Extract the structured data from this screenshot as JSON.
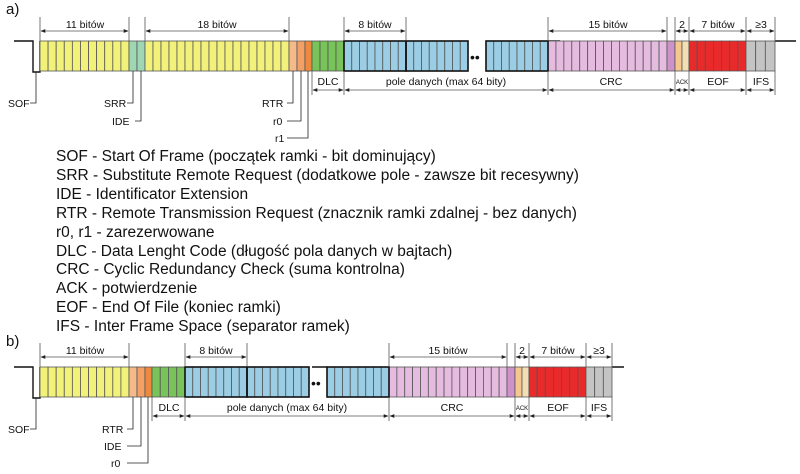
{
  "panels": {
    "a": {
      "label": "a)",
      "top_labels": [
        "11 bitów",
        "18 bitów",
        "8 bitów",
        "15 bitów",
        "2",
        "7 bitów",
        "≥3"
      ],
      "field_labels": [
        "DLC",
        "pole danych (max 64 bity)",
        "CRC",
        "ACK",
        "EOF",
        "IFS"
      ],
      "pointer_labels": [
        "SOF",
        "SRR",
        "IDE",
        "RTR",
        "r0",
        "r1"
      ],
      "dots": "••"
    },
    "b": {
      "label": "b)",
      "top_labels": [
        "11 bitów",
        "8 bitów",
        "15 bitów",
        "2",
        "7 bitów",
        "≥3"
      ],
      "field_labels": [
        "DLC",
        "pole danych (max 64 bity)",
        "CRC",
        "ACK",
        "EOF",
        "IFS"
      ],
      "pointer_labels": [
        "SOF",
        "RTR",
        "IDE",
        "r0"
      ],
      "dots": "••"
    }
  },
  "legend": [
    "SOF - Start Of Frame (początek ramki - bit dominujący)",
    "SRR - Substitute Remote Request (dodatkowe pole - zawsze bit recesywny)",
    "IDE - Identificator Extension",
    "RTR - Remote Transmission Request (znacznik ramki zdalnej - bez danych)",
    "r0, r1 - zarezerwowane",
    "DLC - Data Lenght Code (długość pola danych w bajtach)",
    "CRC - Cyclic Redundancy Check (suma kontrolna)",
    "ACK - potwierdzenie",
    "EOF - End Of File (koniec ramki)",
    "IFS - Inter Frame Space (separator ramek)"
  ],
  "colors": {
    "id": "#f2f27a",
    "srr": "#9fd7b4",
    "ide": "#9fd7b4",
    "rtr": "#f6b98a",
    "r0": "#f2a066",
    "r1": "#ee8a3e",
    "dlc": "#78c35a",
    "data": "#9bcde4",
    "crc": "#e5bce0",
    "crc_del": "#cd93c8",
    "ack": "#f5c98e",
    "eof": "#e82a2a",
    "ifs": "#c4c4c4"
  }
}
